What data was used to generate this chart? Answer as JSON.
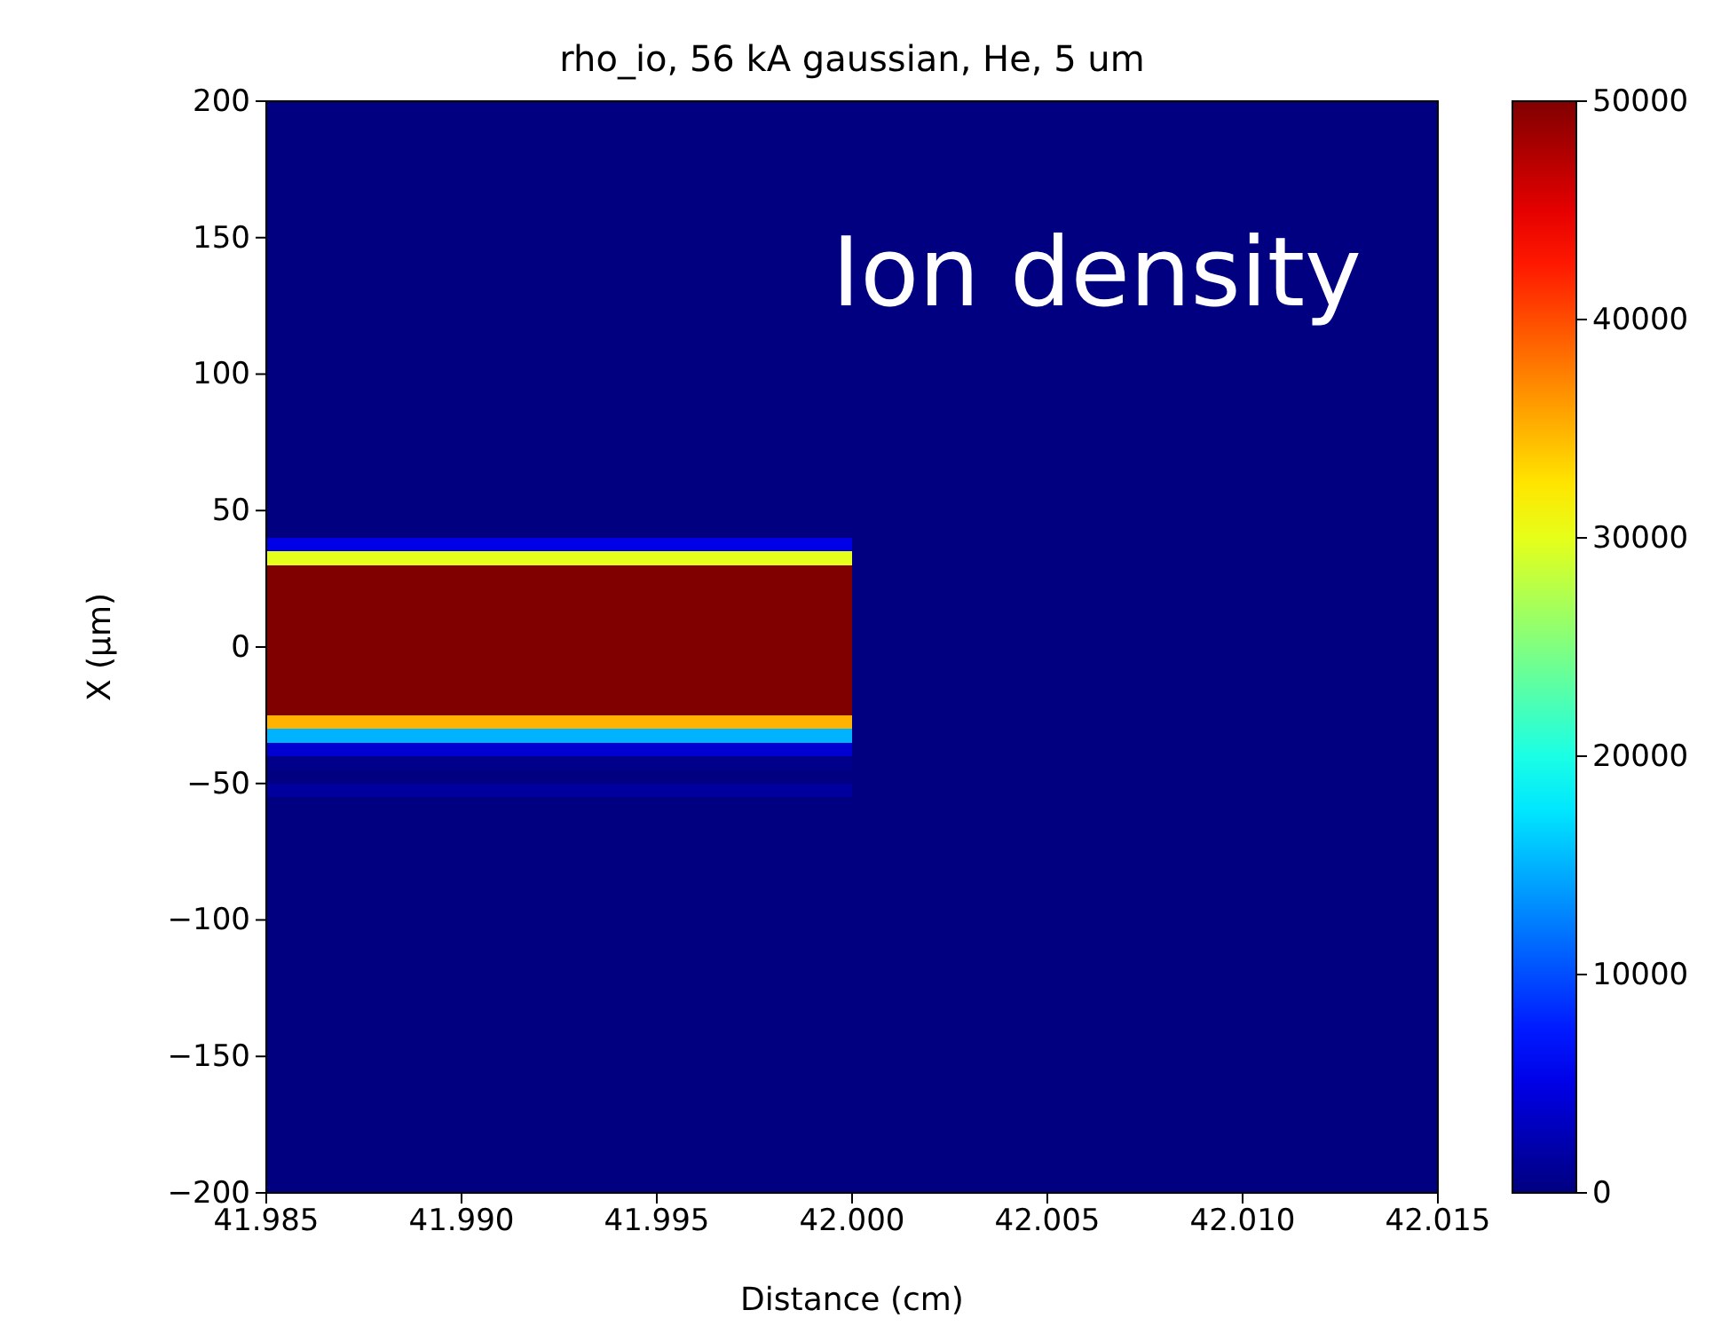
{
  "chart_data": {
    "type": "heatmap",
    "title": "rho_io, 56 kA gaussian, He, 5 um",
    "xlabel": "Distance (cm)",
    "ylabel": "X (µm)",
    "annotations": [
      "Ion density"
    ],
    "cells": [
      [
        0,
        0
      ],
      [
        0,
        0
      ],
      [
        0,
        0
      ],
      [
        0,
        0
      ],
      [
        0,
        0
      ],
      [
        0,
        0
      ],
      [
        0,
        0
      ],
      [
        0,
        0
      ],
      [
        0,
        0
      ],
      [
        0,
        0
      ],
      [
        0,
        0
      ],
      [
        0,
        0
      ],
      [
        0,
        0
      ],
      [
        0,
        0
      ],
      [
        0,
        0
      ],
      [
        0,
        0
      ],
      [
        0,
        0
      ],
      [
        0,
        0
      ],
      [
        0,
        0
      ],
      [
        0,
        0
      ],
      [
        0,
        0
      ],
      [
        0,
        0
      ],
      [
        0,
        0
      ],
      [
        0,
        0
      ],
      [
        0,
        0
      ],
      [
        0,
        0
      ],
      [
        0,
        0
      ],
      [
        0,
        0
      ],
      [
        0,
        0
      ],
      [
        0,
        0
      ],
      [
        0,
        0
      ],
      [
        0,
        0
      ],
      [
        5000,
        0
      ],
      [
        30000,
        0
      ],
      [
        50000,
        0
      ],
      [
        50000,
        0
      ],
      [
        50000,
        0
      ],
      [
        50000,
        0
      ],
      [
        50000,
        0
      ],
      [
        50000,
        0
      ],
      [
        50000,
        0
      ],
      [
        50000,
        0
      ],
      [
        50000,
        0
      ],
      [
        50000,
        0
      ],
      [
        50000,
        0
      ],
      [
        35000,
        0
      ],
      [
        15000,
        0
      ],
      [
        4000,
        0
      ],
      [
        500,
        0
      ],
      [
        0,
        0
      ],
      [
        1500,
        0
      ],
      [
        0,
        0
      ],
      [
        0,
        0
      ],
      [
        0,
        0
      ],
      [
        0,
        0
      ],
      [
        0,
        0
      ],
      [
        0,
        0
      ],
      [
        0,
        0
      ],
      [
        0,
        0
      ],
      [
        0,
        0
      ],
      [
        0,
        0
      ],
      [
        0,
        0
      ],
      [
        0,
        0
      ],
      [
        0,
        0
      ],
      [
        0,
        0
      ],
      [
        0,
        0
      ],
      [
        0,
        0
      ],
      [
        0,
        0
      ],
      [
        0,
        0
      ],
      [
        0,
        0
      ],
      [
        0,
        0
      ],
      [
        0,
        0
      ],
      [
        0,
        0
      ],
      [
        0,
        0
      ],
      [
        0,
        0
      ],
      [
        0,
        0
      ],
      [
        0,
        0
      ],
      [
        0,
        0
      ],
      [
        0,
        0
      ],
      [
        0,
        0
      ]
    ],
    "xlim": [
      41.985,
      42.015
    ],
    "xticks": [
      41.985,
      {
        "value": 41.99,
        "label": "41.990"
      },
      41.995,
      {
        "value": 42,
        "label": "42.000"
      },
      42.005,
      {
        "value": 42.01,
        "label": "42.010"
      },
      42.015
    ],
    "ylim": [
      -200,
      200
    ],
    "yticks": [
      {
        "value": -200,
        "label": "−200"
      },
      {
        "value": -150,
        "label": "−150"
      },
      {
        "value": -100,
        "label": "−100"
      },
      {
        "value": -50,
        "label": "−50"
      },
      0,
      50,
      100,
      150,
      200
    ],
    "clim": [
      0,
      50000
    ],
    "cticks": [
      0,
      10000,
      20000,
      30000,
      40000,
      50000
    ]
  }
}
